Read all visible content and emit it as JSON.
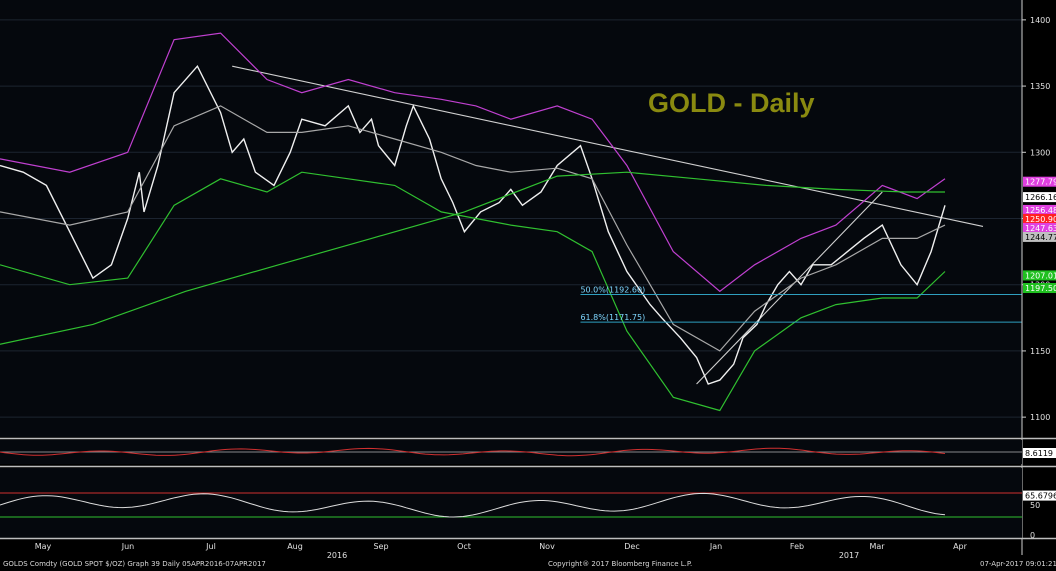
{
  "chart_data": {
    "type": "line",
    "title": "GOLD - Daily",
    "instrument": "GOLDS Comdty (GOLD SPOT $/OZ) Graph 39 Daily 05APR2016-07APR2017",
    "copyright": "Copyright® 2017 Bloomberg Finance L.P.",
    "timestamp": "07-Apr-2017 09:01:21",
    "x_month_labels": [
      "May",
      "Jun",
      "Jul",
      "Aug",
      "Sep",
      "Oct",
      "Nov",
      "Dec",
      "Jan",
      "Feb",
      "Mar",
      "Apr"
    ],
    "x_year_labels": [
      "2016",
      "2017"
    ],
    "y_ticks": [
      1100,
      1150,
      1200,
      1250,
      1300,
      1350,
      1400
    ],
    "ylim": [
      1085,
      1415
    ],
    "price_tags": [
      {
        "label": "1277.79",
        "value": 1277.79,
        "color": "#e040e0"
      },
      {
        "label": "1266.16",
        "value": 1266.16,
        "color": "#ffffff"
      },
      {
        "label": "1256.48",
        "value": 1256.48,
        "color": "#e040e0"
      },
      {
        "label": "1250.90",
        "value": 1250.9,
        "color": "#ff2020"
      },
      {
        "label": "1247.63",
        "value": 1247.63,
        "color": "#e040e0"
      },
      {
        "label": "1244.77",
        "value": 1244.77,
        "color": "#c0c0c0"
      },
      {
        "label": "1207.01",
        "value": 1207.01,
        "color": "#20c020"
      },
      {
        "label": "1197.50",
        "value": 1197.5,
        "color": "#20c020"
      }
    ],
    "fib_levels": [
      {
        "label": "50.0%(1192.60)",
        "value": 1192.6
      },
      {
        "label": "61.8%(1171.75)",
        "value": 1171.75
      }
    ],
    "series": [
      {
        "name": "Price",
        "color": "#f0f0f0",
        "x": [
          0,
          10,
          20,
          30,
          40,
          48,
          55,
          60,
          62,
          68,
          75,
          85,
          95,
          100,
          105,
          110,
          118,
          125,
          130,
          140,
          150,
          155,
          160,
          163,
          170,
          175,
          178,
          185,
          190,
          195,
          200,
          207,
          215,
          220,
          225,
          233,
          240,
          250,
          255,
          262,
          270,
          280,
          285,
          293,
          300,
          305,
          310,
          316,
          320,
          326,
          330,
          335,
          340,
          345,
          350,
          358,
          365,
          372,
          380,
          388,
          395,
          401,
          407
        ],
        "y": [
          1290,
          1285,
          1275,
          1240,
          1205,
          1215,
          1250,
          1285,
          1255,
          1290,
          1345,
          1365,
          1330,
          1300,
          1310,
          1285,
          1275,
          1300,
          1325,
          1320,
          1335,
          1315,
          1325,
          1305,
          1290,
          1320,
          1335,
          1310,
          1280,
          1262,
          1240,
          1255,
          1262,
          1272,
          1260,
          1270,
          1290,
          1305,
          1280,
          1240,
          1210,
          1185,
          1175,
          1160,
          1145,
          1125,
          1128,
          1140,
          1160,
          1170,
          1185,
          1200,
          1210,
          1200,
          1215,
          1215,
          1225,
          1235,
          1245,
          1215,
          1200,
          1225,
          1260
        ]
      },
      {
        "name": "Upper Band",
        "color": "#c040d0",
        "x": [
          0,
          30,
          55,
          75,
          95,
          115,
          130,
          150,
          170,
          190,
          205,
          220,
          240,
          255,
          270,
          290,
          310,
          325,
          345,
          360,
          380,
          395,
          407
        ],
        "y": [
          1295,
          1285,
          1300,
          1385,
          1390,
          1355,
          1345,
          1355,
          1345,
          1340,
          1335,
          1325,
          1335,
          1325,
          1290,
          1225,
          1195,
          1215,
          1235,
          1245,
          1275,
          1265,
          1280
        ]
      },
      {
        "name": "Lower Band",
        "color": "#30c030",
        "x": [
          0,
          30,
          55,
          75,
          95,
          115,
          130,
          150,
          170,
          190,
          205,
          220,
          240,
          255,
          270,
          290,
          310,
          325,
          345,
          360,
          380,
          395,
          407
        ],
        "y": [
          1215,
          1200,
          1205,
          1260,
          1280,
          1270,
          1285,
          1280,
          1275,
          1255,
          1250,
          1245,
          1240,
          1225,
          1165,
          1115,
          1105,
          1150,
          1175,
          1185,
          1190,
          1190,
          1210
        ]
      },
      {
        "name": "Moving Average",
        "color": "#a8a8a8",
        "x": [
          0,
          30,
          55,
          75,
          95,
          115,
          130,
          150,
          170,
          190,
          205,
          220,
          240,
          255,
          270,
          290,
          310,
          325,
          345,
          360,
          380,
          395,
          407
        ],
        "y": [
          1255,
          1245,
          1255,
          1320,
          1335,
          1315,
          1315,
          1320,
          1310,
          1300,
          1290,
          1285,
          1288,
          1280,
          1230,
          1170,
          1150,
          1180,
          1205,
          1215,
          1235,
          1235,
          1245
        ]
      },
      {
        "name": "200 MA",
        "color": "#30c030",
        "x": [
          0,
          40,
          80,
          120,
          160,
          200,
          240,
          270,
          300,
          330,
          360,
          390,
          407
        ],
        "y": [
          1155,
          1170,
          1195,
          1215,
          1235,
          1255,
          1282,
          1285,
          1280,
          1275,
          1272,
          1270,
          1270
        ]
      }
    ],
    "indicator1": {
      "label": "8.6119",
      "value": 8.6119
    },
    "indicator2": {
      "label": "65.6796",
      "value": 65.6796,
      "y_ticks": [
        50,
        0
      ],
      "levels": [
        70,
        30
      ]
    }
  }
}
